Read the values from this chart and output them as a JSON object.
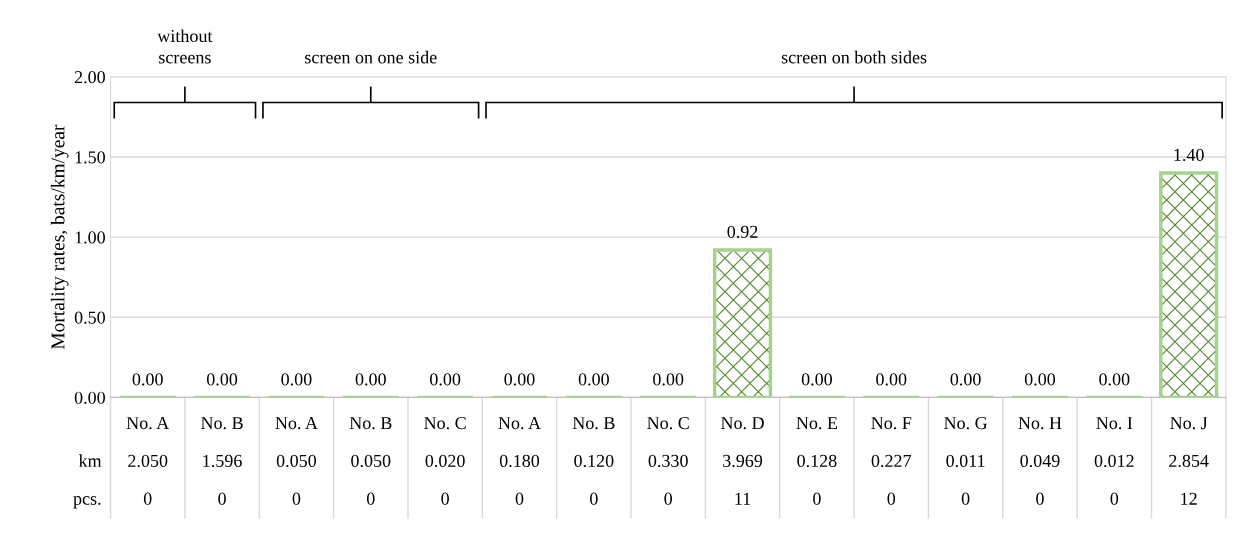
{
  "chart_data": {
    "type": "bar",
    "ylabel": "Mortality rates, bats/km/year",
    "categories": [
      "No. A",
      "No. B",
      "No. A",
      "No. B",
      "No. C",
      "No. A",
      "No. B",
      "No. C",
      "No. D",
      "No. E",
      "No. F",
      "No. G",
      "No. H",
      "No. I",
      "No. J"
    ],
    "values": [
      0,
      0,
      0,
      0,
      0,
      0,
      0,
      0,
      0.92,
      0,
      0,
      0,
      0,
      0,
      1.4
    ],
    "value_labels": [
      "0.00",
      "0.00",
      "0.00",
      "0.00",
      "0.00",
      "0.00",
      "0.00",
      "0.00",
      "0.92",
      "0.00",
      "0.00",
      "0.00",
      "0.00",
      "0.00",
      "1.40"
    ],
    "color": "#a9d18e",
    "ylim": [
      0,
      2.0
    ],
    "yticks": [
      {
        "value": 0,
        "label": "0.00"
      },
      {
        "value": 0.5,
        "label": "0.50"
      },
      {
        "value": 1.0,
        "label": "1.00"
      },
      {
        "value": 1.5,
        "label": "1.50"
      },
      {
        "value": 2.0,
        "label": "2.00"
      }
    ],
    "grid": "y",
    "annotations": [
      "without\nscreens",
      "screen on one side",
      "screen on both sides",
      "km",
      "2.050",
      "1.596",
      "0.050",
      "0.050",
      "0.020",
      "0.180",
      "0.120",
      "0.330",
      "3.969",
      "0.128",
      "0.227",
      "0.011",
      "0.049",
      "0.012",
      "2.854",
      "pcs.",
      "0",
      "0",
      "0",
      "0",
      "0",
      "0",
      "0",
      "0",
      "11",
      "0",
      "0",
      "0",
      "0",
      "0",
      "12"
    ]
  }
}
